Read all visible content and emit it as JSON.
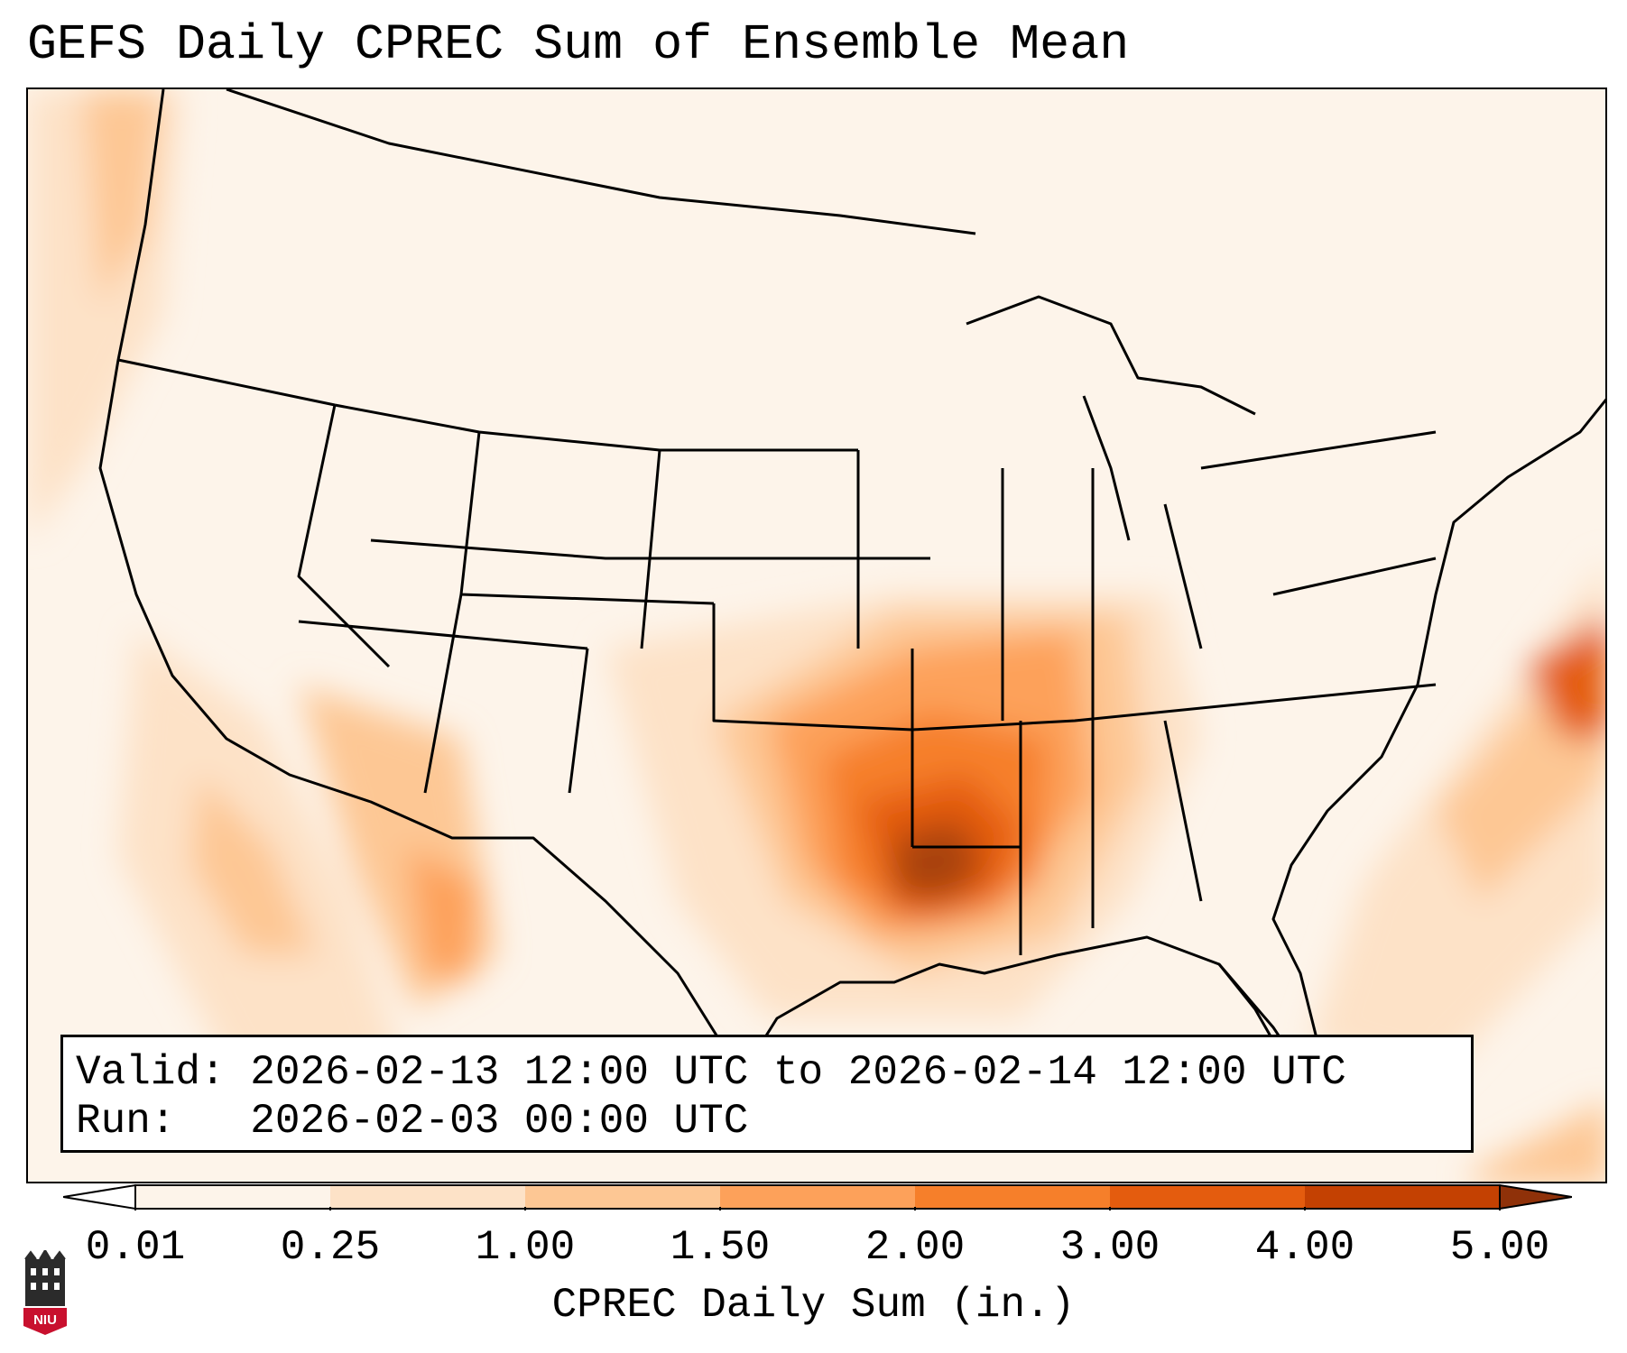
{
  "title": "GEFS Daily CPREC Sum of Ensemble Mean",
  "info": {
    "valid_label": "Valid:",
    "valid_value": "2026-02-13 12:00 UTC to 2026-02-14 12:00 UTC",
    "run_label": "Run:",
    "run_value": "2026-02-03 00:00 UTC"
  },
  "colorbar": {
    "label": "CPREC Daily Sum (in.)",
    "ticks": [
      "0.01",
      "0.25",
      "1.00",
      "1.50",
      "2.00",
      "3.00",
      "4.00",
      "5.00"
    ],
    "colors": [
      "#fdf4ea",
      "#fde2c7",
      "#fdc794",
      "#fda15a",
      "#f67f2a",
      "#e45c0e",
      "#c44102"
    ],
    "extend_low_color": "#ffffff",
    "extend_high_color": "#8f3109"
  },
  "logo": {
    "text": "NIU",
    "color": "#c8102e"
  }
}
